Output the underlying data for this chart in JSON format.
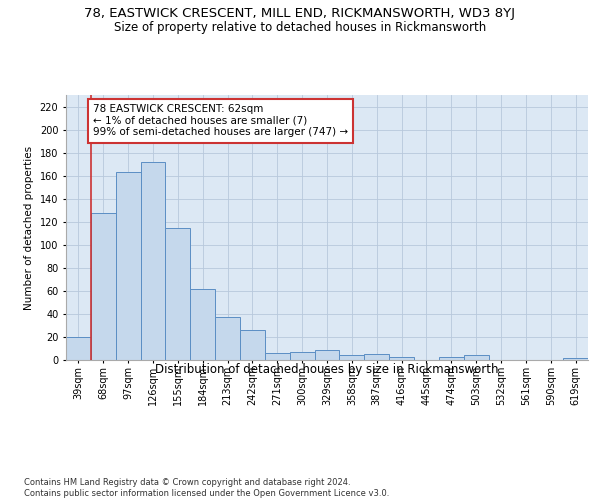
{
  "title1": "78, EASTWICK CRESCENT, MILL END, RICKMANSWORTH, WD3 8YJ",
  "title2": "Size of property relative to detached houses in Rickmansworth",
  "xlabel": "Distribution of detached houses by size in Rickmansworth",
  "ylabel": "Number of detached properties",
  "categories": [
    "39sqm",
    "68sqm",
    "97sqm",
    "126sqm",
    "155sqm",
    "184sqm",
    "213sqm",
    "242sqm",
    "271sqm",
    "300sqm",
    "329sqm",
    "358sqm",
    "387sqm",
    "416sqm",
    "445sqm",
    "474sqm",
    "503sqm",
    "532sqm",
    "561sqm",
    "590sqm",
    "619sqm"
  ],
  "values": [
    20,
    128,
    163,
    172,
    115,
    62,
    37,
    26,
    6,
    7,
    9,
    4,
    5,
    3,
    0,
    3,
    4,
    0,
    0,
    0,
    2
  ],
  "bar_color": "#c5d8ec",
  "bar_edge_color": "#5b8ec4",
  "highlight_color": "#cc3333",
  "annotation_text": "78 EASTWICK CRESCENT: 62sqm\n← 1% of detached houses are smaller (7)\n99% of semi-detached houses are larger (747) →",
  "annotation_box_color": "#ffffff",
  "annotation_box_edge": "#cc3333",
  "ylim": [
    0,
    230
  ],
  "yticks": [
    0,
    20,
    40,
    60,
    80,
    100,
    120,
    140,
    160,
    180,
    200,
    220
  ],
  "grid_color": "#b8c8dc",
  "background_color": "#dce8f4",
  "footer": "Contains HM Land Registry data © Crown copyright and database right 2024.\nContains public sector information licensed under the Open Government Licence v3.0.",
  "title1_fontsize": 9.5,
  "title2_fontsize": 8.5,
  "xlabel_fontsize": 8.5,
  "ylabel_fontsize": 7.5,
  "tick_fontsize": 7,
  "annotation_fontsize": 7.5,
  "footer_fontsize": 6
}
